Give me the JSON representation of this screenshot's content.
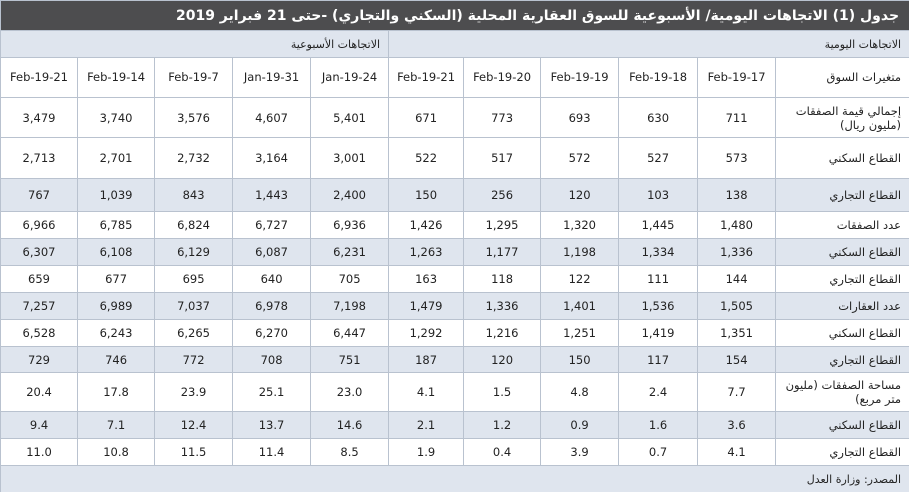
{
  "title": "جدول (1) الاتجاهات اليومية/ الأسبوعية للسوق العقارية المحلية (السكني والتجاري) -حتى 21 فبراير 2019",
  "groups": {
    "daily": "الاتجاهات اليومية",
    "weekly": "الاتجاهات الأسبوعية"
  },
  "table": {
    "header": [
      "متغيرات السوق",
      "17-Feb-19",
      "18-Feb-19",
      "19-Feb-19",
      "20-Feb-19",
      "21-Feb-19",
      "24-Jan-19",
      "31-Jan-19",
      "7-Feb-19",
      "14-Feb-19",
      "21-Feb-19"
    ],
    "rows": [
      [
        "إجمالي قيمة الصفقات (مليون ريال)",
        "711",
        "630",
        "693",
        "773",
        "671",
        "5,401",
        "4,607",
        "3,576",
        "3,740",
        "3,479"
      ],
      [
        "القطاع السكني",
        "573",
        "527",
        "572",
        "517",
        "522",
        "3,001",
        "3,164",
        "2,732",
        "2,701",
        "2,713"
      ],
      [
        "القطاع التجاري",
        "138",
        "103",
        "120",
        "256",
        "150",
        "2,400",
        "1,443",
        "843",
        "1,039",
        "767"
      ],
      [
        "عدد الصفقات",
        "1,480",
        "1,445",
        "1,320",
        "1,295",
        "1,426",
        "6,936",
        "6,727",
        "6,824",
        "6,785",
        "6,966"
      ],
      [
        "القطاع السكني",
        "1,336",
        "1,334",
        "1,198",
        "1,177",
        "1,263",
        "6,231",
        "6,087",
        "6,129",
        "6,108",
        "6,307"
      ],
      [
        "القطاع التجاري",
        "144",
        "111",
        "122",
        "118",
        "163",
        "705",
        "640",
        "695",
        "677",
        "659"
      ],
      [
        "عدد العقارات",
        "1,505",
        "1,536",
        "1,401",
        "1,336",
        "1,479",
        "7,198",
        "6,978",
        "7,037",
        "6,989",
        "7,257"
      ],
      [
        "القطاع السكني",
        "1,351",
        "1,419",
        "1,251",
        "1,216",
        "1,292",
        "6,447",
        "6,270",
        "6,265",
        "6,243",
        "6,528"
      ],
      [
        "القطاع التجاري",
        "154",
        "117",
        "150",
        "120",
        "187",
        "751",
        "708",
        "772",
        "746",
        "729"
      ],
      [
        "مساحة الصفقات (مليون متر مربع)",
        "7.7",
        "2.4",
        "4.8",
        "1.5",
        "4.1",
        "23.0",
        "25.1",
        "23.9",
        "17.8",
        "20.4"
      ],
      [
        "القطاع السكني",
        "3.6",
        "1.6",
        "0.9",
        "1.2",
        "2.1",
        "14.6",
        "13.7",
        "12.4",
        "7.1",
        "9.4"
      ],
      [
        "القطاع التجاري",
        "4.1",
        "0.7",
        "3.9",
        "0.4",
        "1.9",
        "8.5",
        "11.4",
        "11.5",
        "10.8",
        "11.0"
      ]
    ]
  },
  "source": "المصدر: وزارة العدل"
}
